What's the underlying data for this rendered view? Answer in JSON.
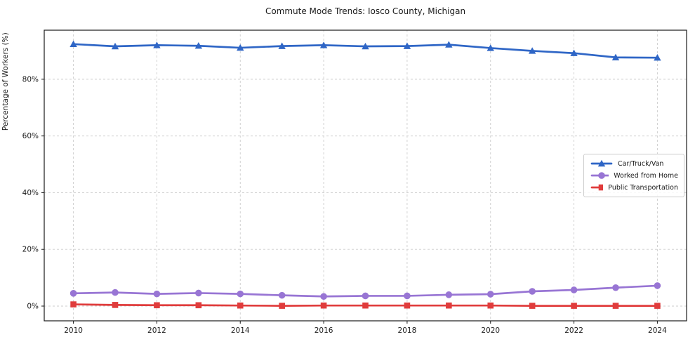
{
  "chart_data": {
    "type": "line",
    "title": "Commute Mode Trends: Iosco County, Michigan",
    "xlabel": "",
    "ylabel": "Percentage of Workers (%)",
    "x": [
      2010,
      2011,
      2012,
      2013,
      2014,
      2015,
      2016,
      2017,
      2018,
      2019,
      2020,
      2021,
      2022,
      2023,
      2024
    ],
    "series": [
      {
        "name": "Car/Truck/Van",
        "color": "#2f66c6",
        "marker": "triangle",
        "values": [
          92.4,
          91.6,
          92.0,
          91.8,
          91.1,
          91.7,
          92.0,
          91.6,
          91.7,
          92.2,
          91.0,
          90.0,
          89.2,
          87.7,
          87.6
        ]
      },
      {
        "name": "Worked from Home",
        "color": "#9875d4",
        "marker": "circle",
        "values": [
          4.5,
          4.8,
          4.3,
          4.6,
          4.3,
          3.8,
          3.4,
          3.6,
          3.6,
          4.0,
          4.2,
          5.2,
          5.7,
          6.5,
          7.2
        ]
      },
      {
        "name": "Public Transportation",
        "color": "#e03c3c",
        "marker": "square",
        "values": [
          0.6,
          0.4,
          0.3,
          0.3,
          0.2,
          0.1,
          0.2,
          0.2,
          0.2,
          0.2,
          0.2,
          0.1,
          0.1,
          0.1,
          0.1
        ]
      }
    ],
    "xticks": {
      "values": [
        2010,
        2012,
        2014,
        2016,
        2018,
        2020,
        2022,
        2024
      ],
      "labels": [
        "2010",
        "2012",
        "2014",
        "2016",
        "2018",
        "2020",
        "2022",
        "2024"
      ]
    },
    "yticks": {
      "values": [
        0,
        20,
        40,
        60,
        80
      ],
      "labels": [
        "0%",
        "20%",
        "40%",
        "60%",
        "80%"
      ]
    },
    "xlim": [
      2009.3,
      2024.7
    ],
    "ylim": [
      -5.2,
      97.3
    ],
    "grid": true,
    "grid_color": "#cccccc",
    "axis_color": "#1a1a1a",
    "legend_position": "center-right"
  }
}
